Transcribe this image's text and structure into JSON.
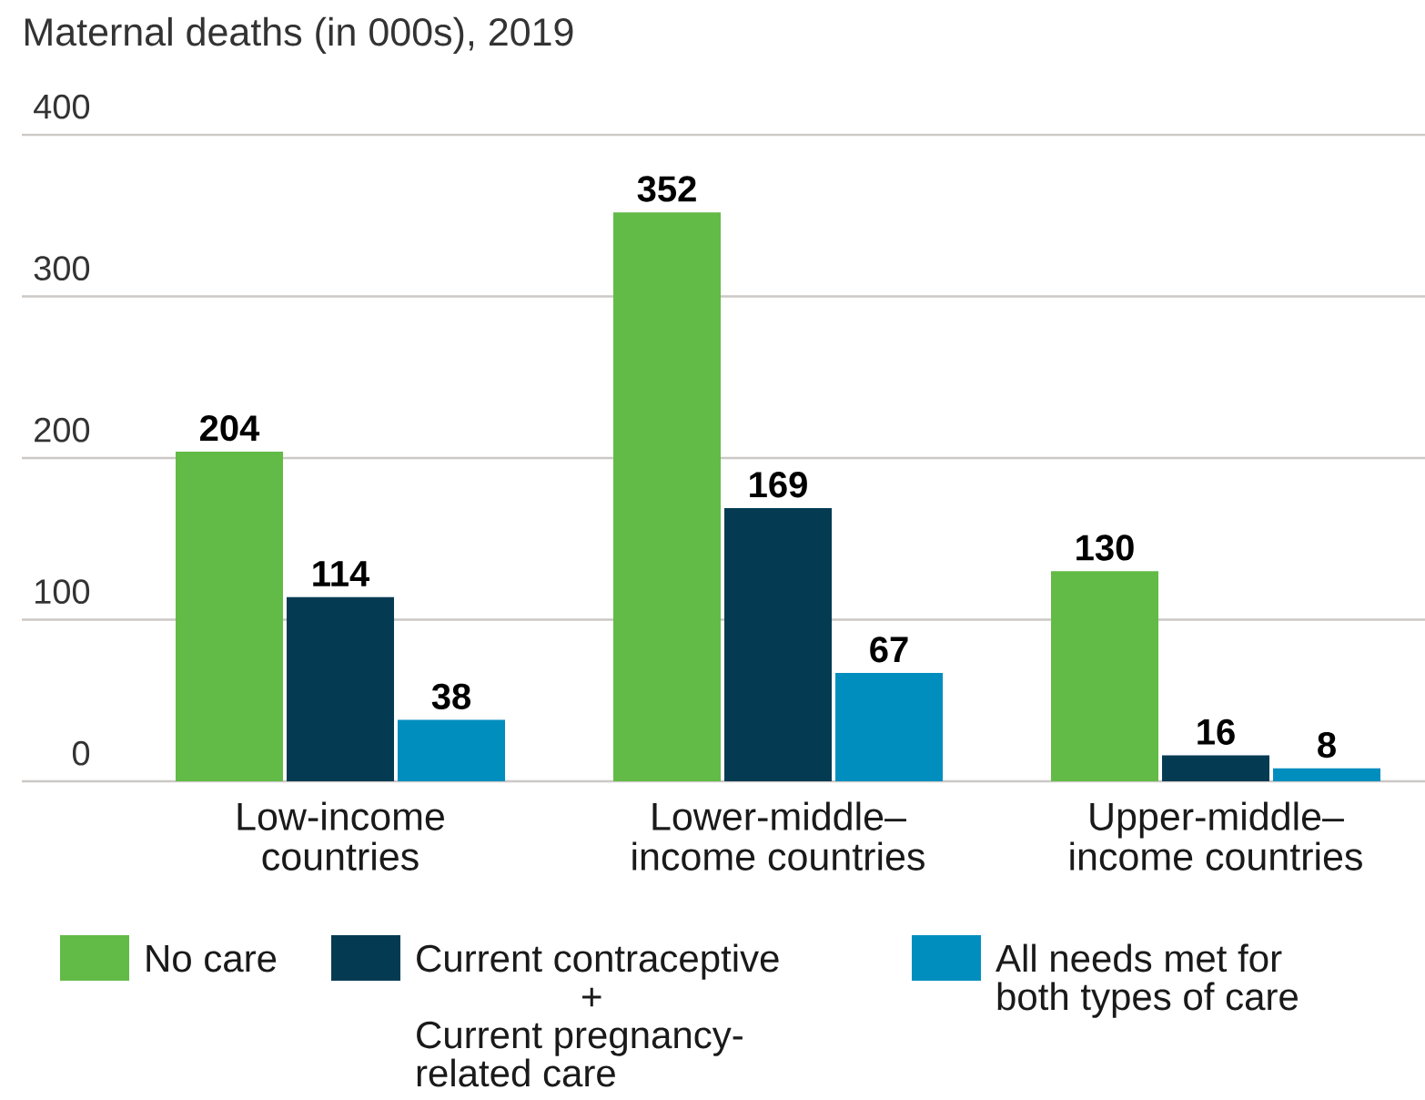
{
  "chart_data": {
    "type": "bar",
    "title": "Maternal deaths (in 000s), 2019",
    "categories": [
      "Low-income countries",
      "Lower-middle–income countries",
      "Upper-middle–income countries"
    ],
    "series": [
      {
        "name": "No care",
        "color": "#62bb46",
        "values": [
          204,
          352,
          130
        ]
      },
      {
        "name": "Current contraceptive + Current pregnancy-related care",
        "color": "#043b53",
        "values": [
          114,
          169,
          16
        ]
      },
      {
        "name": "All needs met for both types of care",
        "color": "#008ebf",
        "values": [
          38,
          67,
          8
        ]
      }
    ],
    "ylim": [
      0,
      400
    ],
    "yticks": [
      0,
      100,
      200,
      300,
      400
    ],
    "grid": "y",
    "legend": "bottom",
    "data_labels": true
  }
}
